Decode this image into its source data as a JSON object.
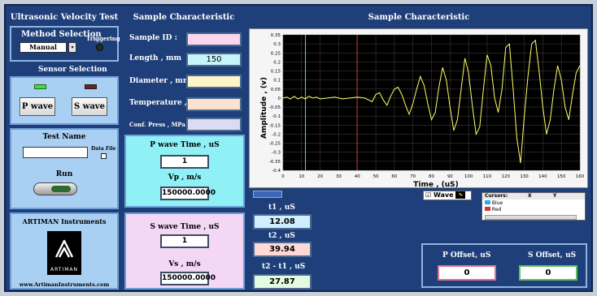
{
  "headers": {
    "left": "Ultrasonic Velocity Test System",
    "middle": "Sample Characteristic",
    "right": "Sample Characteristic"
  },
  "method": {
    "title": "Method Selection",
    "selected": "Manual",
    "triggering": "Triggering"
  },
  "sensor": {
    "title": "Sensor Selection",
    "p_button": "P wave",
    "s_button": "S wave"
  },
  "test": {
    "title": "Test Name",
    "data_file": "Data File",
    "run": "Run"
  },
  "brand": {
    "title": "ARTIMAN Instruments",
    "logo_text": "ARTIMAN",
    "url": "www.ArtimanInstruments.com"
  },
  "sample": {
    "id_label": "Sample ID :",
    "id_value": "",
    "length_label": "Length , mm",
    "length_value": "150",
    "diameter_label": "Diameter , mm",
    "diameter_value": "",
    "temperature_label": "Temperature , C",
    "temperature_value": "",
    "conf_label": "Conf. Press , MPa",
    "conf_value": ""
  },
  "pwave": {
    "time_label": "P wave Time , uS",
    "time_value": "1",
    "vp_label": "Vp , m/s",
    "vp_value": "150000.0000"
  },
  "swave": {
    "time_label": "S wave Time , uS",
    "time_value": "1",
    "vs_label": "Vs , m/s",
    "vs_value": "150000.0000"
  },
  "readouts": {
    "t1_label": "t1 , uS",
    "t1_value": "12.08",
    "t2_label": "t2 , uS",
    "t2_value": "39.94",
    "dt_label": "t2 - t1 , uS",
    "dt_value": "27.87"
  },
  "offsets": {
    "p_label": "P Offset, uS",
    "p_value": "0",
    "s_label": "S Offset, uS",
    "s_value": "0"
  },
  "legend": {
    "wave_label": "Wave"
  },
  "cursors": {
    "col1": "Cursors:",
    "col2": "X",
    "col3": "Y",
    "items": [
      "Blue",
      "Red"
    ]
  },
  "colors": {
    "trace": "#ffff66",
    "cursor_blue": "#5fd3d3",
    "cursor_red": "#e03030"
  },
  "chart_data": {
    "type": "line",
    "xlabel": "Time , (uS)",
    "ylabel": "Amplitude , (v)",
    "xlim": [
      0,
      160
    ],
    "ylim": [
      -0.4,
      0.35
    ],
    "x_ticks": [
      0,
      10,
      20,
      30,
      40,
      50,
      60,
      70,
      80,
      90,
      100,
      110,
      120,
      130,
      140,
      150,
      160
    ],
    "y_ticks": [
      0.35,
      0.3,
      0.25,
      0.2,
      0.15,
      0.1,
      0.05,
      0,
      -0.05,
      -0.1,
      -0.15,
      -0.2,
      -0.25,
      -0.3,
      -0.35,
      -0.4
    ],
    "y_tick_labels": [
      "0.35",
      "0.3",
      "0.25",
      "0.2",
      "0.15",
      "0.1",
      "0.05",
      "0",
      "-0.05",
      "-0.1",
      "-0.15",
      "-0.2",
      "-0.25",
      "-0.3",
      "-0.35",
      "-0.4"
    ],
    "cursors": [
      12.08,
      39.94
    ],
    "grid": true,
    "series": [
      {
        "x": [
          0,
          2,
          4,
          6,
          8,
          10,
          12,
          14,
          16,
          18,
          20,
          24,
          28,
          32,
          36,
          40,
          44,
          48,
          50,
          52,
          54,
          56,
          58,
          60,
          62,
          64,
          66,
          68,
          70,
          72,
          74,
          76,
          78,
          80,
          82,
          84,
          86,
          88,
          90,
          92,
          94,
          96,
          98,
          100,
          102,
          104,
          106,
          108,
          110,
          112,
          114,
          116,
          118,
          120,
          122,
          124,
          126,
          128,
          130,
          132,
          134,
          136,
          138,
          140,
          142,
          144,
          146,
          148,
          150,
          152,
          154,
          156,
          158,
          160
        ],
        "y": [
          0.0,
          0.005,
          -0.005,
          0.01,
          -0.005,
          0.005,
          -0.005,
          0.01,
          0.0,
          0.005,
          -0.005,
          0.0,
          0.005,
          -0.005,
          0.0,
          0.005,
          0.0,
          -0.02,
          0.02,
          0.03,
          -0.01,
          -0.04,
          0.01,
          0.05,
          0.06,
          0.02,
          -0.04,
          -0.09,
          -0.03,
          0.05,
          0.12,
          0.07,
          -0.03,
          -0.12,
          -0.08,
          0.06,
          0.17,
          0.1,
          -0.05,
          -0.18,
          -0.12,
          0.05,
          0.22,
          0.14,
          -0.04,
          -0.2,
          -0.16,
          0.05,
          0.24,
          0.18,
          0.0,
          -0.08,
          0.05,
          0.28,
          0.3,
          0.05,
          -0.22,
          -0.36,
          -0.1,
          0.12,
          0.3,
          0.32,
          0.15,
          -0.05,
          -0.2,
          -0.12,
          0.05,
          0.18,
          0.1,
          -0.05,
          -0.12,
          0.02,
          0.14,
          0.18
        ]
      }
    ]
  }
}
